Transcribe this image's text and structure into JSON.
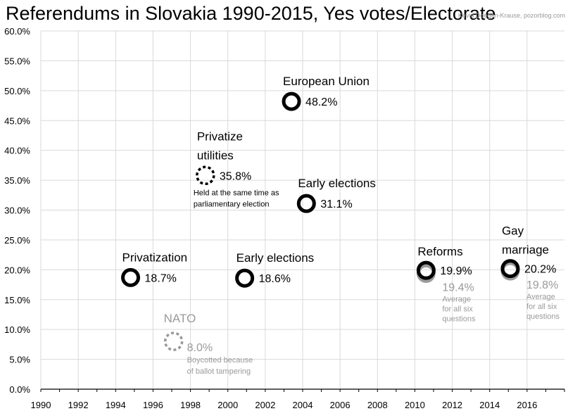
{
  "header": {
    "title": "Referendums in Slovakia 1990-2015, Yes votes/Electorate",
    "credit": "Kevin Deegan-Krause, pozorblog.com"
  },
  "chart_data": {
    "type": "scatter",
    "title": "Referendums in Slovakia 1990-2015, Yes votes/Electorate",
    "xlim": [
      1990,
      2018
    ],
    "ylim": [
      0,
      60
    ],
    "grid": true,
    "x_ticks": [
      "1990",
      "1992",
      "1994",
      "1996",
      "1998",
      "2000",
      "2002",
      "2004",
      "2006",
      "2008",
      "2010",
      "2012",
      "2014",
      "2016"
    ],
    "y_ticks": [
      "0.0%",
      "5.0%",
      "10.0%",
      "15.0%",
      "20.0%",
      "25.0%",
      "30.0%",
      "35.0%",
      "40.0%",
      "45.0%",
      "50.0%",
      "55.0%",
      "60.0%"
    ],
    "points": [
      {
        "x": 1994.8,
        "y": 18.7,
        "label_lines": [
          "Privatization"
        ],
        "value_label": "18.7%",
        "style": "solid",
        "color": "#000000",
        "note_lines": []
      },
      {
        "x": 1997.1,
        "y": 8.0,
        "label_lines": [
          "NATO"
        ],
        "value_label": "8.0%",
        "style": "dotted",
        "color": "#9a9a9a",
        "note_lines": [
          "Boycotted because",
          "of ballot tampering"
        ]
      },
      {
        "x": 1998.8,
        "y": 35.8,
        "label_lines": [
          "Privatize",
          "utilities"
        ],
        "value_label": "35.8%",
        "style": "dotted",
        "color": "#000000",
        "note_lines": [
          "Held at the same time as",
          "parliamentary election"
        ]
      },
      {
        "x": 2000.9,
        "y": 18.6,
        "label_lines": [
          "Early elections"
        ],
        "value_label": "18.6%",
        "style": "solid",
        "color": "#000000",
        "note_lines": []
      },
      {
        "x": 2003.4,
        "y": 48.2,
        "label_lines": [
          "European Union"
        ],
        "value_label": "48.2%",
        "style": "solid",
        "color": "#000000",
        "note_lines": []
      },
      {
        "x": 2004.2,
        "y": 31.1,
        "label_lines": [
          "Early elections"
        ],
        "value_label": "31.1%",
        "style": "solid",
        "color": "#000000",
        "note_lines": []
      },
      {
        "x": 2010.6,
        "y": 19.9,
        "label_lines": [
          "Reforms"
        ],
        "value_label": "19.9%",
        "style": "solid",
        "color": "#000000",
        "note_lines": []
      },
      {
        "x": 2010.6,
        "y": 19.4,
        "label_lines": [],
        "value_label": "19.4%",
        "style": "solid",
        "color": "#9a9a9a",
        "note_lines": [
          "Average",
          "for all six",
          "questions"
        ]
      },
      {
        "x": 2015.1,
        "y": 20.2,
        "label_lines": [
          "Gay",
          "marriage"
        ],
        "value_label": "20.2%",
        "style": "solid",
        "color": "#000000",
        "note_lines": []
      },
      {
        "x": 2015.1,
        "y": 19.8,
        "label_lines": [],
        "value_label": "19.8%",
        "style": "solid",
        "color": "#9a9a9a",
        "note_lines": [
          "Average",
          "for all six",
          "questions"
        ]
      }
    ]
  }
}
